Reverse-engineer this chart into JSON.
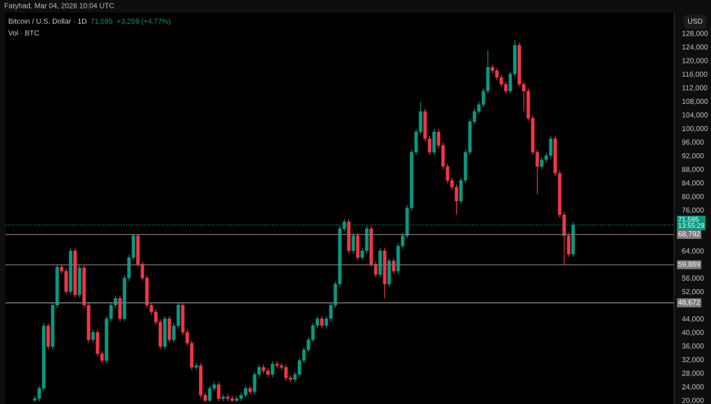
{
  "chart_data": {
    "type": "candlestick",
    "title": "Bitcoin / U.S. Dollar · 1D",
    "subtitle": "Vol · BTC",
    "ylabel": "USD",
    "annotations": [
      "Fatyhad, Mar 04, 2026 10:04 UTC",
      "71,595  +3,259 (+4.77%)"
    ],
    "categories": [
      null,
      null,
      null,
      null,
      null,
      null,
      null,
      null,
      null,
      null,
      null,
      null,
      null,
      null,
      null,
      null,
      null,
      null,
      null,
      null,
      null,
      null,
      null,
      null,
      null,
      null,
      null,
      null,
      null,
      null,
      null,
      null,
      null,
      null,
      null,
      null,
      null,
      null,
      null,
      null,
      null,
      null,
      null,
      null,
      null,
      null,
      null,
      null,
      null,
      null,
      null,
      null,
      null,
      null,
      null,
      null,
      null,
      null,
      null,
      null,
      null,
      null,
      null,
      null,
      null,
      null,
      null,
      null,
      null,
      null,
      null,
      null,
      null,
      null,
      null,
      null,
      null,
      null,
      null,
      null,
      null,
      null,
      null,
      null,
      null,
      null,
      null,
      null,
      null,
      null,
      null,
      null,
      null,
      null,
      null,
      null,
      null,
      null,
      null,
      null,
      null,
      null,
      null,
      null,
      null,
      null,
      null,
      null,
      null,
      null,
      null,
      null,
      null,
      null,
      null,
      null,
      null,
      null,
      null,
      null,
      null,
      null,
      null,
      null,
      null,
      null,
      null,
      null,
      null,
      null,
      null,
      null,
      null,
      null,
      null,
      null,
      null,
      null,
      null,
      null,
      null,
      null,
      null,
      null,
      null,
      null,
      null,
      null,
      null
    ],
    "ohlc": [
      null,
      null,
      null,
      null,
      null,
      null,
      [
        20000,
        21300,
        19500,
        20500
      ],
      [
        20500,
        24300,
        19700,
        23500
      ],
      [
        23500,
        42700,
        22700,
        41900
      ],
      [
        41900,
        42700,
        35000,
        35800
      ],
      [
        35800,
        48800,
        35000,
        48000
      ],
      [
        48000,
        60000,
        47200,
        59200
      ],
      [
        59200,
        60000,
        57200,
        58000
      ],
      [
        58000,
        58800,
        51200,
        52000
      ],
      [
        52000,
        64800,
        51200,
        64000
      ],
      [
        64000,
        64800,
        50200,
        51000
      ],
      [
        51000,
        59800,
        50200,
        59000
      ],
      [
        59000,
        59800,
        47200,
        48000
      ],
      [
        48000,
        48800,
        37000,
        37800
      ],
      [
        37800,
        40800,
        37000,
        40000
      ],
      [
        40000,
        40800,
        32900,
        33700
      ],
      [
        33700,
        34500,
        30900,
        31700
      ],
      [
        31700,
        44800,
        30900,
        44000
      ],
      [
        44000,
        48800,
        43200,
        48000
      ],
      [
        48000,
        50800,
        47200,
        50000
      ],
      [
        50000,
        50800,
        43200,
        44000
      ],
      [
        44000,
        56800,
        43200,
        56000
      ],
      [
        56000,
        62800,
        55200,
        62000
      ],
      [
        62000,
        69000,
        61200,
        68400
      ],
      [
        68400,
        69000,
        59200,
        60000
      ],
      [
        60000,
        60800,
        55200,
        56000
      ],
      [
        56000,
        56800,
        47200,
        48000
      ],
      [
        48000,
        48800,
        45200,
        46000
      ],
      [
        46000,
        46800,
        42200,
        43000
      ],
      [
        43000,
        43800,
        35000,
        35800
      ],
      [
        35800,
        44800,
        35000,
        44000
      ],
      [
        44000,
        44800,
        37000,
        37800
      ],
      [
        37800,
        42700,
        37000,
        41900
      ],
      [
        41900,
        48800,
        41100,
        48000
      ],
      [
        48000,
        48800,
        39200,
        40000
      ],
      [
        40000,
        40800,
        36000,
        36800
      ],
      [
        36800,
        37600,
        28900,
        29700
      ],
      [
        29700,
        31000,
        28900,
        30200
      ],
      [
        30200,
        31000,
        20700,
        21500
      ],
      [
        21500,
        22300,
        19500,
        19900
      ],
      [
        19900,
        24300,
        19500,
        23500
      ],
      [
        23500,
        25400,
        22700,
        24600
      ],
      [
        24600,
        25400,
        19700,
        20500
      ],
      [
        20500,
        21800,
        19700,
        21000
      ],
      [
        21000,
        21800,
        19700,
        20500
      ],
      [
        20500,
        21300,
        19500,
        19900
      ],
      [
        19900,
        21300,
        19500,
        20500
      ],
      [
        20500,
        22300,
        19700,
        21500
      ],
      [
        21500,
        24300,
        20700,
        23500
      ],
      [
        23500,
        24300,
        21700,
        22500
      ],
      [
        22500,
        28400,
        21700,
        27600
      ],
      [
        27600,
        30500,
        26800,
        29700
      ],
      [
        29700,
        30500,
        27900,
        28700
      ],
      [
        28700,
        29500,
        26800,
        27600
      ],
      [
        27600,
        31500,
        26800,
        30700
      ],
      [
        30700,
        31500,
        29400,
        30200
      ],
      [
        30200,
        31000,
        28900,
        29700
      ],
      [
        29700,
        30500,
        25800,
        26600
      ],
      [
        26600,
        27400,
        25300,
        26100
      ],
      [
        26100,
        28400,
        25300,
        27600
      ],
      [
        27600,
        32500,
        26800,
        31700
      ],
      [
        31700,
        35600,
        30900,
        34800
      ],
      [
        34800,
        38600,
        34000,
        37800
      ],
      [
        37800,
        42800,
        37000,
        42000
      ],
      [
        42000,
        44800,
        41200,
        44000
      ],
      [
        44000,
        44800,
        41200,
        42000
      ],
      [
        42000,
        44800,
        41200,
        44000
      ],
      [
        44000,
        48800,
        43200,
        48000
      ],
      [
        48000,
        55000,
        47200,
        54200
      ],
      [
        54200,
        71300,
        53400,
        70500
      ],
      [
        70500,
        73300,
        69700,
        72500
      ],
      [
        72500,
        73300,
        63200,
        64000
      ],
      [
        64000,
        69200,
        63200,
        68400
      ],
      [
        68400,
        69200,
        61200,
        62000
      ],
      [
        62000,
        64800,
        61200,
        64000
      ],
      [
        64000,
        71300,
        63200,
        70500
      ],
      [
        70500,
        71300,
        59200,
        60000
      ],
      [
        60000,
        60800,
        56200,
        57000
      ],
      [
        57000,
        64800,
        56200,
        64000
      ],
      [
        64000,
        64800,
        50000,
        54200
      ],
      [
        54200,
        61800,
        53400,
        61000
      ],
      [
        61000,
        61800,
        57200,
        58000
      ],
      [
        58000,
        66200,
        57200,
        65400
      ],
      [
        65400,
        69200,
        64600,
        68400
      ],
      [
        68400,
        77400,
        67600,
        76600
      ],
      [
        76600,
        93800,
        75800,
        93000
      ],
      [
        93000,
        99800,
        92200,
        99000
      ],
      [
        99000,
        107800,
        98200,
        105000
      ],
      [
        105000,
        105800,
        96200,
        97000
      ],
      [
        97000,
        97800,
        92200,
        93000
      ],
      [
        93000,
        99800,
        92200,
        99000
      ],
      [
        99000,
        99800,
        94200,
        95000
      ],
      [
        95000,
        95800,
        88000,
        88800
      ],
      [
        88800,
        89600,
        83900,
        84700
      ],
      [
        84700,
        85500,
        81900,
        82700
      ],
      [
        82700,
        83500,
        74600,
        78600
      ],
      [
        78600,
        85500,
        77800,
        84700
      ],
      [
        84700,
        93800,
        83900,
        93000
      ],
      [
        93000,
        102800,
        92200,
        102000
      ],
      [
        102000,
        105800,
        101200,
        105000
      ],
      [
        105000,
        107800,
        104200,
        107000
      ],
      [
        107000,
        111800,
        106200,
        111000
      ],
      [
        111000,
        123000,
        110200,
        118000
      ],
      [
        118000,
        118800,
        116200,
        117000
      ],
      [
        117000,
        117800,
        114200,
        115000
      ],
      [
        115000,
        115800,
        112200,
        113000
      ],
      [
        113000,
        113800,
        110200,
        111000
      ],
      [
        111000,
        116800,
        110200,
        116000
      ],
      [
        116000,
        126000,
        115200,
        124500
      ],
      [
        124500,
        125300,
        112200,
        113000
      ],
      [
        113000,
        113800,
        105000,
        111000
      ],
      [
        111000,
        111800,
        102200,
        103000
      ],
      [
        103000,
        103800,
        92200,
        93000
      ],
      [
        93000,
        93800,
        80600,
        88800
      ],
      [
        88800,
        91600,
        88000,
        90800
      ],
      [
        90800,
        92800,
        90000,
        92000
      ],
      [
        92000,
        97800,
        91200,
        97000
      ],
      [
        97000,
        97800,
        86000,
        86800
      ],
      [
        86800,
        87600,
        73800,
        74600
      ],
      [
        74600,
        75400,
        60000,
        68400
      ],
      [
        68400,
        69200,
        62200,
        63000
      ],
      [
        63000,
        72400,
        62200,
        71595
      ],
      null,
      null,
      null,
      null,
      null,
      null,
      null,
      null,
      null,
      null,
      null,
      null,
      null,
      null,
      null,
      null,
      null,
      null,
      null,
      null,
      null,
      null
    ],
    "colors": [
      null,
      null,
      null,
      null,
      null,
      null,
      "#089981",
      "#089981",
      "#089981",
      "#f23645",
      "#089981",
      "#089981",
      "#f23645",
      "#f23645",
      "#089981",
      "#f23645",
      "#089981",
      "#f23645",
      "#f23645",
      "#089981",
      "#f23645",
      "#f23645",
      "#089981",
      "#089981",
      "#089981",
      "#f23645",
      "#089981",
      "#089981",
      "#089981",
      "#f23645",
      "#f23645",
      "#f23645",
      "#f23645",
      "#f23645",
      "#f23645",
      "#089981",
      "#f23645",
      "#089981",
      "#089981",
      "#f23645",
      "#f23645",
      "#f23645",
      "#089981",
      "#f23645",
      "#f23645",
      "#089981",
      "#089981",
      "#f23645",
      "#089981",
      "#f23645",
      "#f23645",
      "#089981",
      "#089981",
      "#089981",
      "#f23645",
      "#089981",
      "#089981",
      "#f23645",
      "#f23645",
      "#089981",
      "#f23645",
      "#f23645",
      "#f23645",
      "#f23645",
      "#089981",
      "#089981",
      "#089981",
      "#089981",
      "#089981",
      "#089981",
      "#f23645",
      "#089981",
      "#089981",
      "#089981",
      "#089981",
      "#089981",
      "#f23645",
      "#089981",
      "#f23645",
      "#089981",
      "#089981",
      "#f23645",
      "#f23645",
      "#089981",
      "#f23645",
      "#089981",
      "#f23645",
      "#089981",
      "#089981",
      "#089981",
      "#089981",
      "#089981",
      "#089981",
      "#f23645",
      "#f23645",
      "#089981",
      "#f23645",
      "#f23645",
      "#f23645",
      "#f23645",
      "#f23645",
      "#089981",
      "#089981",
      "#089981",
      "#089981",
      "#089981",
      "#089981",
      "#089981",
      "#f23645",
      "#f23645",
      "#f23645",
      "#f23645",
      "#089981",
      "#089981",
      "#f23645",
      "#f23645",
      "#f23645",
      "#f23645",
      "#f23645",
      "#089981",
      "#089981",
      "#089981",
      "#f23645",
      "#f23645",
      "#f23645",
      "#f23645",
      "#089981",
      null,
      null,
      null,
      null,
      null,
      null,
      null,
      null,
      null,
      null,
      null,
      null,
      null,
      null,
      null,
      null,
      null,
      null,
      null,
      null,
      null,
      null
    ],
    "ylim": [
      18900,
      134100
    ],
    "yticks": [
      {
        "value": 20000,
        "label": "20,000"
      },
      {
        "value": 24000,
        "label": "24,000"
      },
      {
        "value": 28000,
        "label": "28,000"
      },
      {
        "value": 32000,
        "label": "32,000"
      },
      {
        "value": 36000,
        "label": "36,000"
      },
      {
        "value": 40000,
        "label": "40,000"
      },
      {
        "value": 44000,
        "label": "44,000"
      },
      {
        "value": 52000,
        "label": "52,000"
      },
      {
        "value": 56000,
        "label": "56,000"
      },
      {
        "value": 60000,
        "label": null
      },
      {
        "value": 64000,
        "label": "64,000"
      },
      {
        "value": 76000,
        "label": "76,000"
      },
      {
        "value": 80000,
        "label": "80,000"
      },
      {
        "value": 84000,
        "label": "84,000"
      },
      {
        "value": 88000,
        "label": "88,000"
      },
      {
        "value": 92000,
        "label": "92,000"
      },
      {
        "value": 96000,
        "label": "96,000"
      },
      {
        "value": 100000,
        "label": "100,000"
      },
      {
        "value": 104000,
        "label": "104,000"
      },
      {
        "value": 108000,
        "label": "108,000"
      },
      {
        "value": 112000,
        "label": "112,000"
      },
      {
        "value": 116000,
        "label": "116,000"
      },
      {
        "value": 120000,
        "label": "120,000"
      },
      {
        "value": 124000,
        "label": "124,000"
      },
      {
        "value": 128000,
        "label": "128,000"
      }
    ],
    "ref_lines": [
      {
        "axis": "y",
        "value": 71595,
        "label": "71,595\n13:55:29",
        "color": "#089981",
        "line_style": "dotted"
      },
      {
        "axis": "y",
        "value": 68792,
        "label": "68,792",
        "color": "#7a7a7a",
        "line_style": "solid"
      },
      {
        "axis": "y",
        "value": 59869,
        "label": "59,869",
        "color": "#7a7a7a",
        "line_style": "solid"
      },
      {
        "axis": "y",
        "value": 48672,
        "label": "48,672",
        "color": "#7a7a7a",
        "line_style": "solid"
      }
    ],
    "tick_labels": "y",
    "grid": false
  }
}
